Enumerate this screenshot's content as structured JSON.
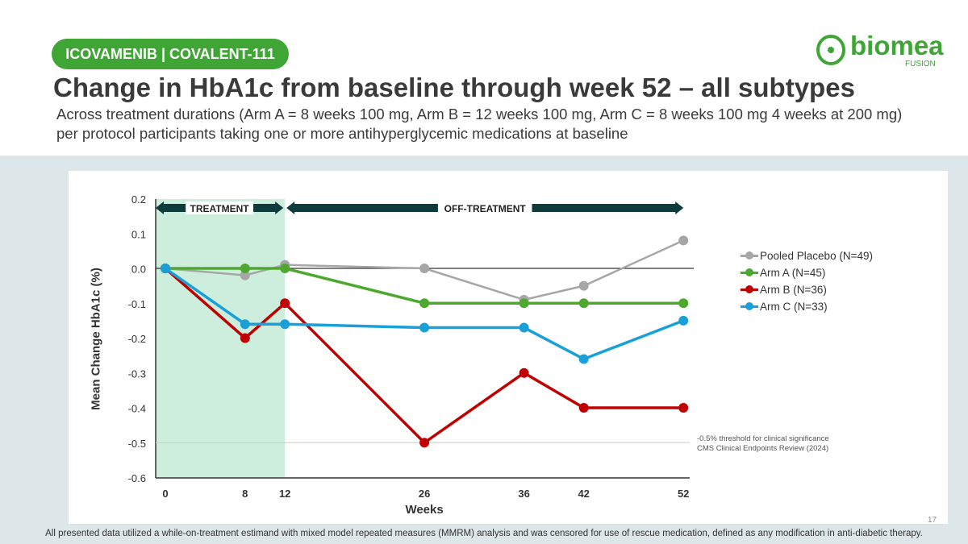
{
  "header": {
    "tag": "ICOVAMENIB | COVALENT-111",
    "title": "Change in HbA1c from baseline through week 52 – all subtypes",
    "subtitle": "Across treatment durations (Arm A = 8 weeks 100 mg, Arm B = 12 weeks 100 mg, Arm C = 8 weeks 100 mg 4 weeks at 200 mg) per protocol participants taking one or more antihyperglycemic medications at baseline"
  },
  "logo": {
    "word": "biomea",
    "sub": "FUSION"
  },
  "footer": {
    "note": "All presented data utilized a while-on-treatment estimand with mixed model repeated measures (MMRM) analysis and was censored for use of rescue medication, defined as any modification in anti-diabetic therapy.",
    "page": "17"
  },
  "chart_data": {
    "type": "line",
    "xlabel": "Weeks",
    "ylabel": "Mean Change HbA1c (%)",
    "x": [
      0,
      8,
      12,
      26,
      36,
      42,
      52
    ],
    "xticks": [
      "0",
      "8",
      "12",
      "26",
      "36",
      "42",
      "52"
    ],
    "ylim": [
      -0.6,
      0.2
    ],
    "yticks": [
      "0.2",
      "0.1",
      "0.0",
      "-0.1",
      "-0.2",
      "-0.3",
      "-0.4",
      "-0.5",
      "-0.6"
    ],
    "legend_position": "right",
    "phases": [
      {
        "label": "TREATMENT",
        "from": 0,
        "to": 12
      },
      {
        "label": "OFF-TREATMENT",
        "from": 12,
        "to": 52
      }
    ],
    "threshold": {
      "value": -0.5,
      "label": "-0.5% threshold for clinical significance",
      "source": "CMS Clinical Endpoints Review (2024)"
    },
    "series": [
      {
        "name": "Pooled Placebo (N=49)",
        "color": "#a6a6a6",
        "values": [
          0,
          -0.02,
          0.01,
          0,
          -0.09,
          -0.05,
          0.08
        ]
      },
      {
        "name": "Arm A (N=45)",
        "color": "#4ea72e",
        "values": [
          0,
          0,
          0,
          -0.1,
          -0.1,
          -0.1,
          -0.1
        ]
      },
      {
        "name": "Arm B (N=36)",
        "color": "#c00000",
        "values": [
          0,
          -0.2,
          -0.1,
          -0.5,
          -0.3,
          -0.4,
          -0.4
        ]
      },
      {
        "name": "Arm C (N=33)",
        "color": "#1aa0d8",
        "values": [
          0,
          -0.16,
          -0.16,
          -0.17,
          -0.17,
          -0.26,
          -0.15
        ]
      }
    ]
  }
}
